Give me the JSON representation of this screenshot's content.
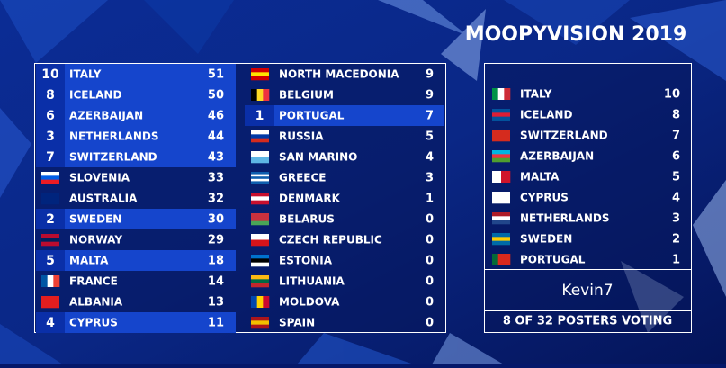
{
  "header": {
    "title": "MOOPYVISION 2019"
  },
  "scoreboard": {
    "columns": [
      [
        {
          "points": 10,
          "country": "ITALY",
          "total": 51
        },
        {
          "points": 8,
          "country": "ICELAND",
          "total": 50
        },
        {
          "points": 6,
          "country": "AZERBAIJAN",
          "total": 46
        },
        {
          "points": 3,
          "country": "NETHERLANDS",
          "total": 44
        },
        {
          "points": 7,
          "country": "SWITZERLAND",
          "total": 43
        },
        {
          "country": "SLOVENIA",
          "total": 33
        },
        {
          "country": "AUSTRALIA",
          "total": 32
        },
        {
          "points": 2,
          "country": "SWEDEN",
          "total": 30
        },
        {
          "country": "NORWAY",
          "total": 29
        },
        {
          "points": 5,
          "country": "MALTA",
          "total": 18
        },
        {
          "country": "FRANCE",
          "total": 14
        },
        {
          "country": "ALBANIA",
          "total": 13
        },
        {
          "points": 4,
          "country": "CYPRUS",
          "total": 11
        }
      ],
      [
        {
          "country": "NORTH MACEDONIA",
          "total": 9
        },
        {
          "country": "BELGIUM",
          "total": 9
        },
        {
          "points": 1,
          "country": "PORTUGAL",
          "total": 7
        },
        {
          "country": "RUSSIA",
          "total": 5
        },
        {
          "country": "SAN MARINO",
          "total": 4
        },
        {
          "country": "GREECE",
          "total": 3
        },
        {
          "country": "DENMARK",
          "total": 1
        },
        {
          "country": "BELARUS",
          "total": 0
        },
        {
          "country": "CZECH REPUBLIC",
          "total": 0
        },
        {
          "country": "ESTONIA",
          "total": 0
        },
        {
          "country": "LITHUANIA",
          "total": 0
        },
        {
          "country": "MOLDOVA",
          "total": 0
        },
        {
          "country": "SPAIN",
          "total": 0
        }
      ]
    ]
  },
  "voting": {
    "votes": [
      {
        "country": "ITALY",
        "points": 10
      },
      {
        "country": "ICELAND",
        "points": 8
      },
      {
        "country": "SWITZERLAND",
        "points": 7
      },
      {
        "country": "AZERBAIJAN",
        "points": 6
      },
      {
        "country": "MALTA",
        "points": 5
      },
      {
        "country": "CYPRUS",
        "points": 4
      },
      {
        "country": "NETHERLANDS",
        "points": 3
      },
      {
        "country": "SWEDEN",
        "points": 2
      },
      {
        "country": "PORTUGAL",
        "points": 1
      }
    ],
    "voter": "Kevin7",
    "status": "8 OF 32 POSTERS VOTING"
  }
}
